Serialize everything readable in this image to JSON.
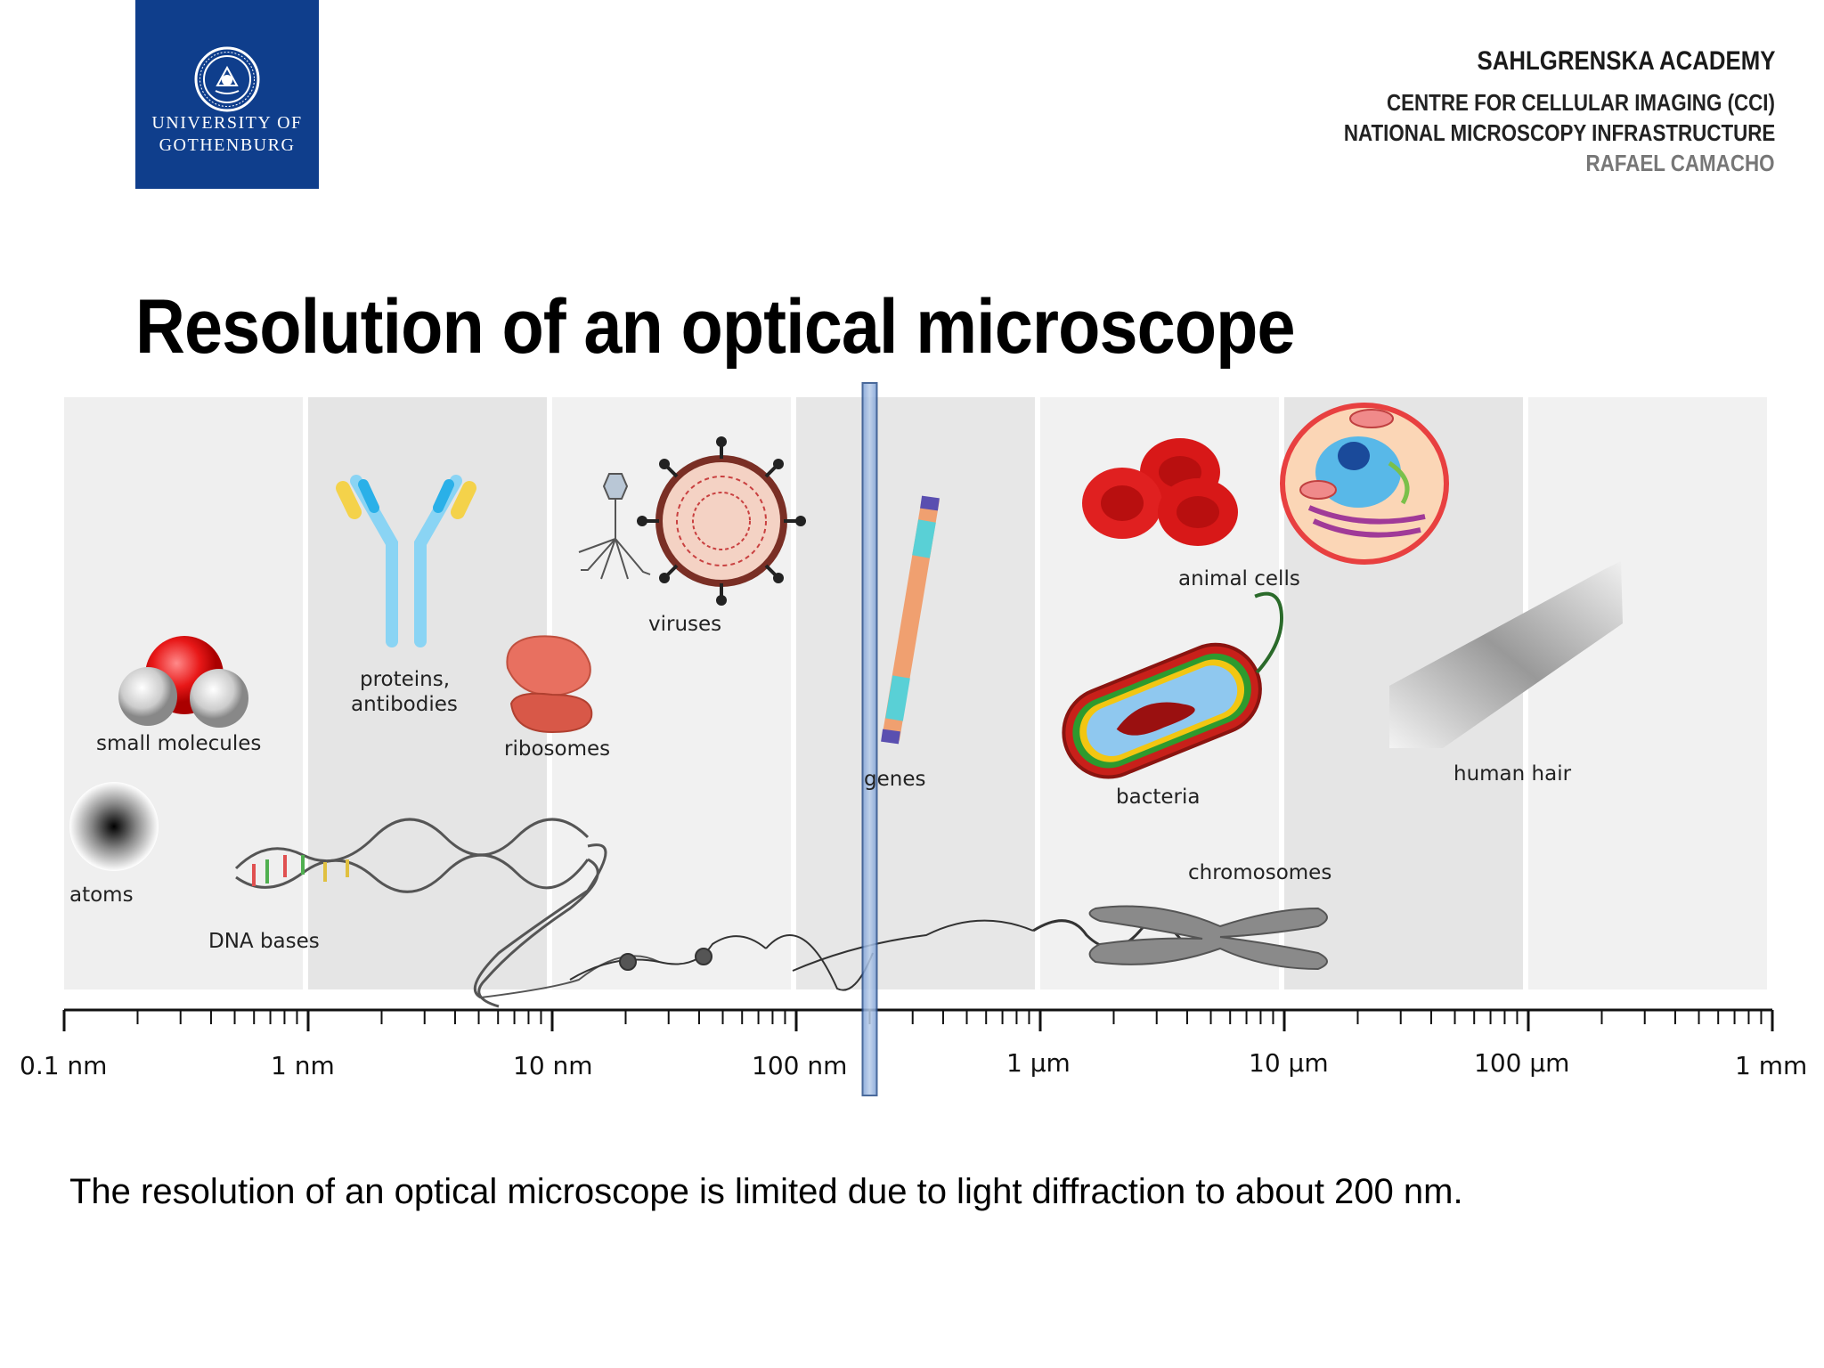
{
  "logo": {
    "line1": "UNIVERSITY OF",
    "line2": "GOTHENBURG",
    "icon": "university-seal-icon",
    "color": "#0f3e8c"
  },
  "header": {
    "academy": "SAHLGRENSKA ACADEMY",
    "centre": "CENTRE FOR CELLULAR IMAGING (CCI)",
    "infrastructure": "NATIONAL MICROSCOPY INFRASTRUCTURE",
    "person": "RAFAEL CAMACHO"
  },
  "title": "Resolution of an optical microscope",
  "scale": {
    "type": "log",
    "unit": "m",
    "range": [
      1e-10,
      0.001
    ],
    "ticks": [
      {
        "value": 1e-10,
        "label": "0.1 nm"
      },
      {
        "value": 1e-09,
        "label": "1 nm"
      },
      {
        "value": 1e-08,
        "label": "10 nm"
      },
      {
        "value": 1e-07,
        "label": "100 nm"
      },
      {
        "value": 1e-06,
        "label": "1 µm"
      },
      {
        "value": 1e-05,
        "label": "10 µm"
      },
      {
        "value": 0.0001,
        "label": "100 µm"
      },
      {
        "value": 0.001,
        "label": "1 mm"
      }
    ],
    "resolution_limit": 2e-07
  },
  "objects": {
    "atoms": "atoms",
    "small_molecules": "small molecules",
    "dna_bases": "DNA bases",
    "proteins_line1": "proteins,",
    "proteins_line2": "antibodies",
    "ribosomes": "ribosomes",
    "viruses": "viruses",
    "genes": "genes",
    "animal_cells": "animal cells",
    "bacteria": "bacteria",
    "chromosomes": "chromosomes",
    "human_hair": "human hair"
  },
  "caption": "The resolution of an optical microscope is limited due to light diffraction to about 200 nm."
}
